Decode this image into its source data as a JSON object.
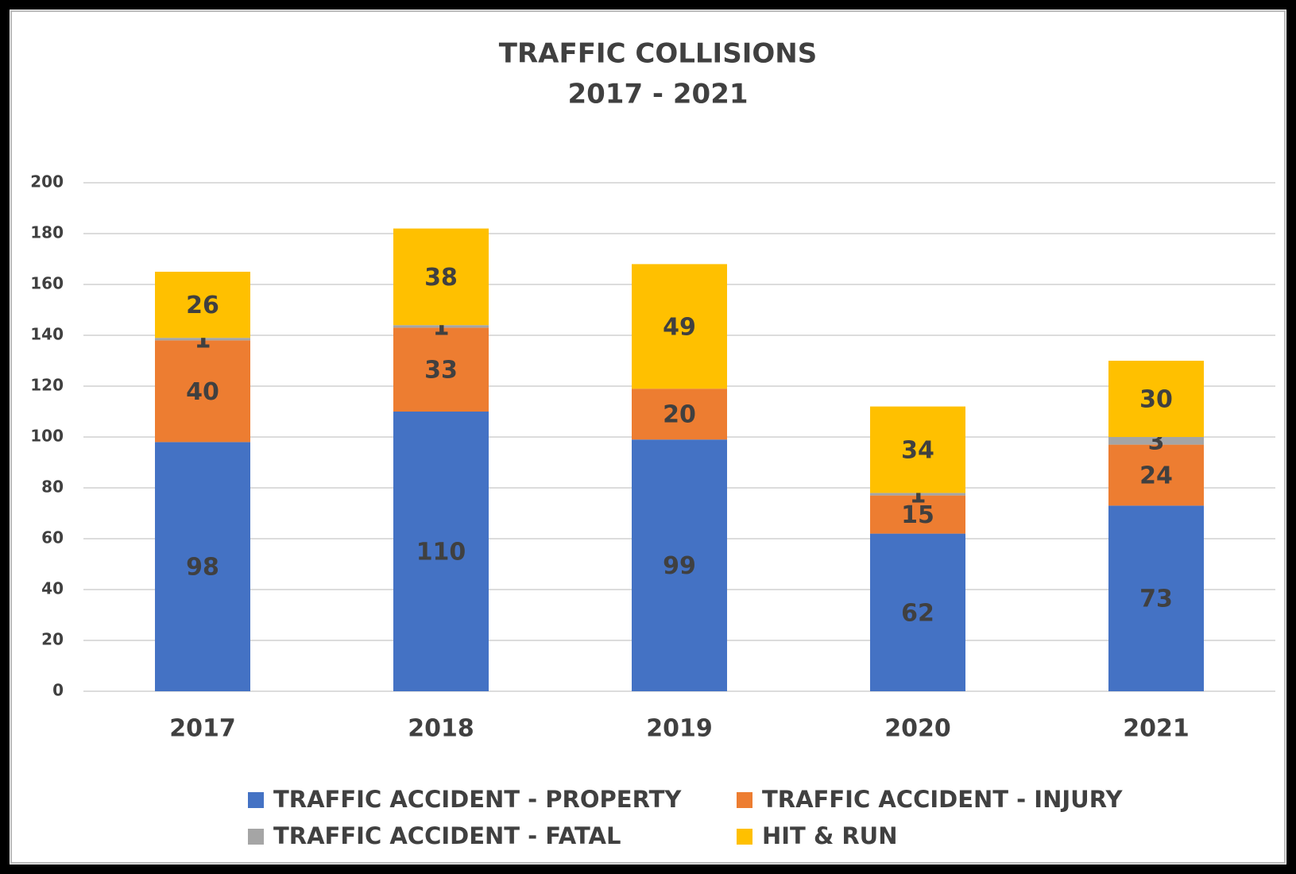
{
  "chart_data": {
    "type": "stacked_bar",
    "title": "TRAFFIC COLLISIONS",
    "subtitle": "2017 - 2021",
    "categories": [
      "2017",
      "2018",
      "2019",
      "2020",
      "2021"
    ],
    "series": [
      {
        "name": "TRAFFIC ACCIDENT - PROPERTY",
        "color": "#4472c4",
        "values": [
          98,
          110,
          99,
          62,
          73
        ]
      },
      {
        "name": "TRAFFIC ACCIDENT - INJURY",
        "color": "#ed7d31",
        "values": [
          40,
          33,
          20,
          15,
          24
        ]
      },
      {
        "name": "TRAFFIC ACCIDENT - FATAL",
        "color": "#a5a5a5",
        "values": [
          1,
          1,
          null,
          1,
          3
        ]
      },
      {
        "name": "HIT & RUN",
        "color": "#ffc000",
        "values": [
          26,
          38,
          49,
          34,
          30
        ]
      }
    ],
    "ylim": [
      0,
      200
    ],
    "yticks": [
      0,
      20,
      40,
      60,
      80,
      100,
      120,
      140,
      160,
      180,
      200
    ],
    "grid": true,
    "legend": "bottom"
  }
}
